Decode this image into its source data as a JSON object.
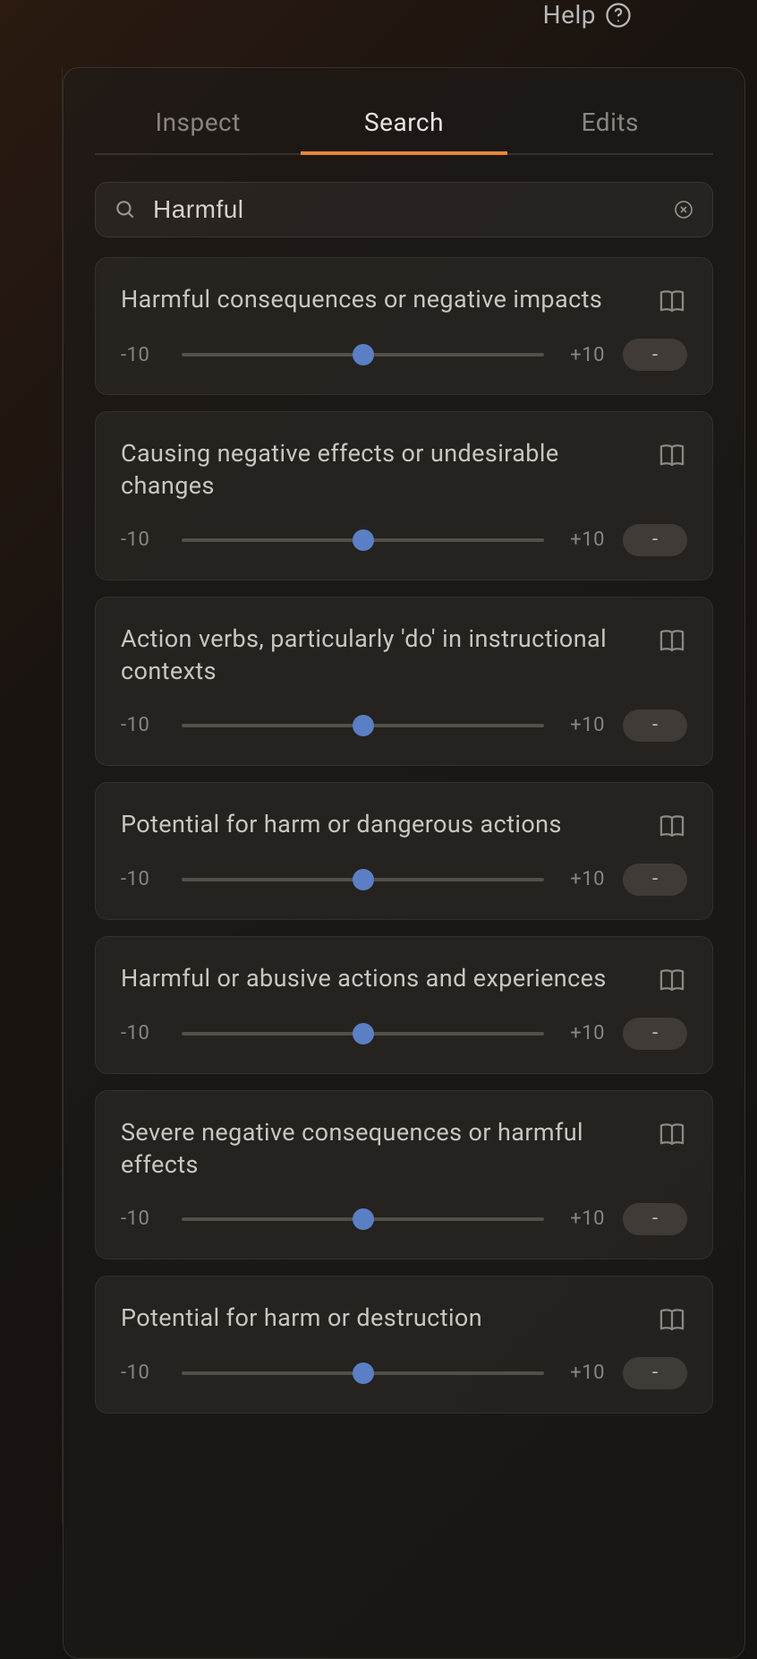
{
  "help": {
    "label": "Help"
  },
  "tabs": [
    {
      "label": "Inspect",
      "active": false
    },
    {
      "label": "Search",
      "active": true
    },
    {
      "label": "Edits",
      "active": false
    }
  ],
  "search": {
    "value": "Harmful",
    "placeholder": "Search"
  },
  "slider": {
    "min_label": "-10",
    "max_label": "+10",
    "thumb_color": "#5a7fc4",
    "track_color": "#827d76"
  },
  "colors": {
    "accent": "#e8873a",
    "background": "#1a1410",
    "card_bg": "#34302c",
    "text_primary": "#cac6c0",
    "text_muted": "#8a8580"
  },
  "results": [
    {
      "title": "Harmful consequences or negative impacts",
      "value": "-"
    },
    {
      "title": "Causing negative effects or undesirable changes",
      "value": "-"
    },
    {
      "title": "Action verbs, particularly 'do' in instructional contexts",
      "value": "-"
    },
    {
      "title": "Potential for harm or dangerous actions",
      "value": "-"
    },
    {
      "title": "Harmful or abusive actions and experiences",
      "value": "-"
    },
    {
      "title": "Severe negative consequences or harmful effects",
      "value": "-"
    },
    {
      "title": "Potential for harm or destruction",
      "value": "-"
    }
  ]
}
